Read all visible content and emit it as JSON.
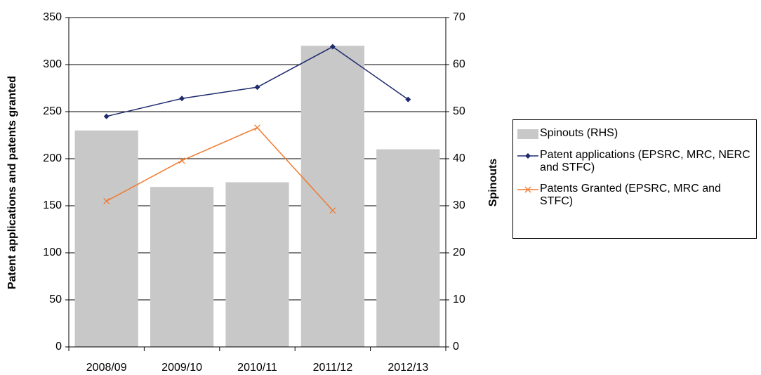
{
  "chart_data": {
    "type": "bar-line",
    "categories": [
      "2008/09",
      "2009/10",
      "2010/11",
      "2011/12",
      "2012/13"
    ],
    "ylabel": "Patent applications and patents granted",
    "y2label": "Spinouts",
    "ylim": [
      0,
      350
    ],
    "yticks": [
      0,
      50,
      100,
      150,
      200,
      250,
      300,
      350
    ],
    "y2lim": [
      0,
      70
    ],
    "y2ticks": [
      0,
      10,
      20,
      30,
      40,
      50,
      60,
      70
    ],
    "grid": true,
    "legend": "right",
    "series": [
      {
        "name": "Spinouts (RHS)",
        "type": "bar",
        "axis": "y2",
        "color": "#c8c8c8",
        "values": [
          46,
          34,
          35,
          64,
          42
        ]
      },
      {
        "name": "Patent applications (EPSRC, MRC, NERC and STFC)",
        "type": "line",
        "marker": "diamond",
        "color": "#1f2a6e",
        "values": [
          245,
          264,
          276,
          319,
          263
        ]
      },
      {
        "name": "Patents Granted (EPSRC, MRC and STFC)",
        "type": "line",
        "marker": "x",
        "color": "#f07a30",
        "values": [
          155,
          198,
          233,
          145,
          null
        ]
      }
    ]
  }
}
